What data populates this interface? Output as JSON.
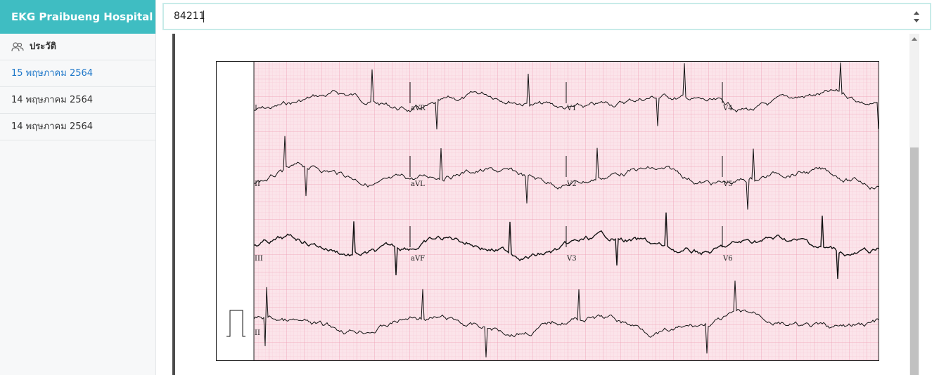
{
  "sidebar": {
    "brand": "EKG Praibueng Hospital",
    "history_label": "ประวัติ",
    "items": [
      {
        "label": "15 พฤษภาคม 2564",
        "active": true
      },
      {
        "label": "14 พฤษภาคม 2564",
        "active": false
      },
      {
        "label": "14 พฤษภาคม 2564",
        "active": false
      }
    ]
  },
  "search": {
    "value": "84211"
  },
  "ekg": {
    "lead_labels": [
      "I",
      "aVR",
      "V1",
      "V4",
      "II",
      "aVL",
      "V2",
      "V5",
      "III",
      "aVF",
      "V3",
      "V6",
      "II"
    ],
    "grid_color": "#f2b3c4",
    "paper_color": "#fbe4ea",
    "trace_color": "#111111"
  },
  "colors": {
    "brand": "#3fbdc2",
    "active_link": "#1e77c9",
    "search_border": "#c8ebe9"
  }
}
